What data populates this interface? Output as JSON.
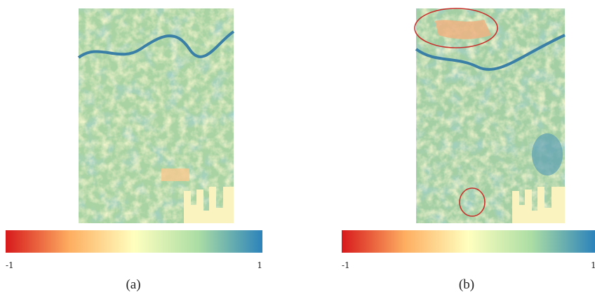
{
  "panels": [
    {
      "label": "(a)",
      "colorbar": {
        "min": -1,
        "max": 1
      }
    },
    {
      "label": "(b)",
      "colorbar": {
        "min": -1,
        "max": 1
      }
    }
  ]
}
